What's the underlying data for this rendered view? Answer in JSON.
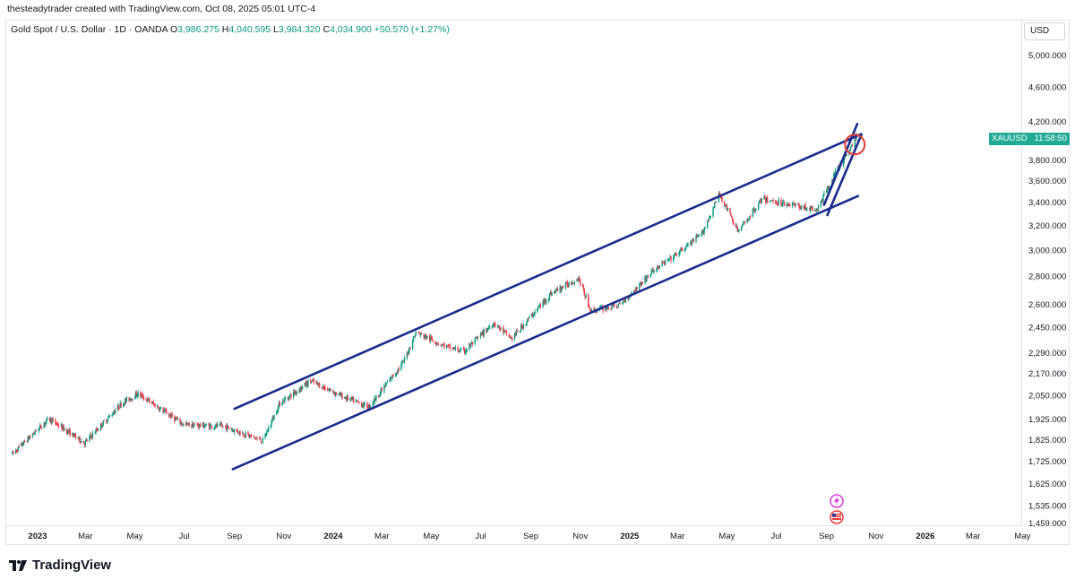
{
  "header": {
    "attribution": "thesteadytrader created with TradingView.com, Oct 08, 2025 05:01 UTC-4"
  },
  "legend": {
    "symbol_desc": "Gold Spot / U.S. Dollar · 1D · OANDA",
    "open_label": "O",
    "open": "3,986.275",
    "high_label": "H",
    "high": "4,040.595",
    "low_label": "L",
    "low": "3,984.320",
    "close_label": "C",
    "close": "4,034.900",
    "change": "+50.570 (+1.27%)"
  },
  "currency": "USD",
  "ticker_badge": {
    "symbol": "XAUUSD",
    "countdown": "11:58:50",
    "color": "#22ab94"
  },
  "footer": {
    "brand": "TradingView"
  },
  "chart_data": {
    "type": "line",
    "log_scale": true,
    "grid": false,
    "series": [
      {
        "x": [
          "2022-12-01",
          "2023-01-15",
          "2023-02-28",
          "2023-04-15",
          "2023-05-05",
          "2023-06-30",
          "2023-08-20",
          "2023-10-06",
          "2023-10-27",
          "2023-12-04",
          "2024-01-15",
          "2024-02-14",
          "2024-03-28",
          "2024-04-12",
          "2024-05-20",
          "2024-06-10",
          "2024-07-17",
          "2024-08-08",
          "2024-09-26",
          "2024-10-30",
          "2024-11-14",
          "2024-12-20",
          "2025-01-31",
          "2025-02-24",
          "2025-03-31",
          "2025-04-22",
          "2025-05-15",
          "2025-06-13",
          "2025-07-23",
          "2025-08-20",
          "2025-09-10",
          "2025-10-08"
        ],
        "values": [
          1760,
          1930,
          1810,
          2010,
          2060,
          1900,
          1890,
          1820,
          2010,
          2130,
          2040,
          1990,
          2240,
          2420,
          2330,
          2300,
          2480,
          2380,
          2680,
          2790,
          2560,
          2600,
          2850,
          2950,
          3130,
          3480,
          3150,
          3430,
          3380,
          3330,
          3650,
          4035
        ]
      }
    ],
    "y_ticks": [
      "5,000.000",
      "4,600.000",
      "4,200.000",
      "3,800.000",
      "3,600.000",
      "3,400.000",
      "3,200.000",
      "3,000.000",
      "2,800.000",
      "2,600.000",
      "2,450.000",
      "2,290.000",
      "2,170.000",
      "2,050.000",
      "1,925.000",
      "1,825.000",
      "1,725.000",
      "1,625.000",
      "1,535.000",
      "1,459.000"
    ],
    "x_ticks": [
      "2023",
      "Mar",
      "May",
      "Jul",
      "Sep",
      "Nov",
      "2024",
      "Mar",
      "May",
      "Jul",
      "Sep",
      "Nov",
      "2025",
      "Mar",
      "May",
      "Jul",
      "Sep",
      "Nov",
      "2026",
      "Mar",
      "May"
    ],
    "ylim": [
      1459,
      5300
    ],
    "annotations": {
      "channel_upper": {
        "x": [
          "2023-09-01",
          "2025-10-14"
        ],
        "y": [
          1980,
          4070
        ]
      },
      "channel_lower": {
        "x": [
          "2023-08-30",
          "2025-10-10"
        ],
        "y": [
          1690,
          3460
        ]
      },
      "steep_channel_upper": {
        "x": [
          "2025-08-29",
          "2025-10-09"
        ],
        "y": [
          3380,
          4180
        ]
      },
      "steep_channel_lower": {
        "x": [
          "2025-09-02",
          "2025-10-14"
        ],
        "y": [
          3290,
          4060
        ]
      },
      "highlight_circle": {
        "x": "2025-10-06",
        "y": 3960,
        "color": "#e53935"
      },
      "line_color": "#1a2b8c"
    },
    "colors": {
      "up": "#089981",
      "down": "#f23645"
    }
  }
}
